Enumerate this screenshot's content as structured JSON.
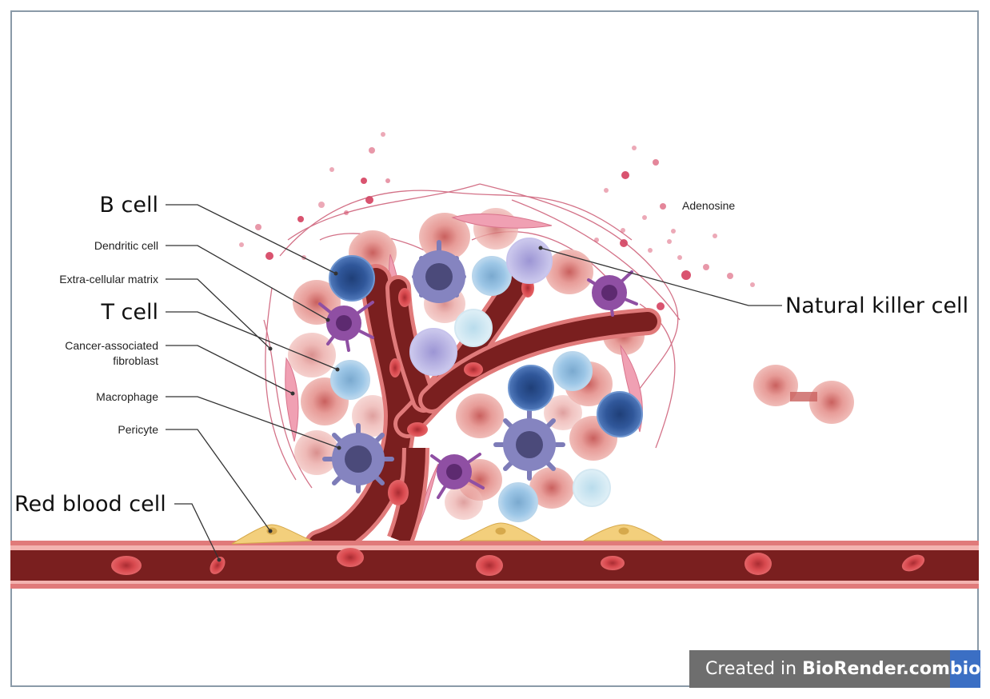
{
  "labels": {
    "b_cell": "B cell",
    "dendritic_cell": "Dendritic cell",
    "extracellular_matrix": "Extra-cellular matrix",
    "t_cell": "T cell",
    "caf_line1": "Cancer-associated",
    "caf_line2": "fibroblast",
    "macrophage": "Macrophage",
    "pericyte": "Pericyte",
    "red_blood_cell": "Red blood cell",
    "natural_killer_cell": "Natural killer cell",
    "adenosine": "Adenosine"
  },
  "watermark": {
    "prefix": "Created in ",
    "brand": "BioRender.com",
    "logo": "bio"
  },
  "colors": {
    "vessel_dark": "#7a1f1f",
    "vessel_wall": "#e07a7a",
    "tumor_cell": "#e9a09c",
    "b_cell": "#3f67a8",
    "t_cell": "#9fc8e6",
    "dendritic": "#8f4fa3",
    "macrophage": "#7d7cb8",
    "nk_cell": "#b7b3e2",
    "pericyte": "#f3cf7c",
    "adenosine": "#d9536f"
  }
}
